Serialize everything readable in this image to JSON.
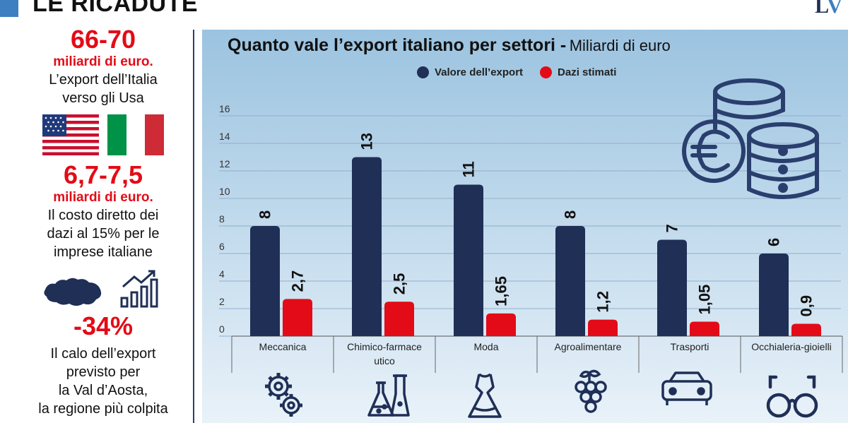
{
  "header": {
    "title": "LE RICADUTE",
    "logo": "LV"
  },
  "sidebar": {
    "stat1": {
      "value": "66-70",
      "unit": "miliardi di euro.",
      "lines": [
        "L’export dell’Italia",
        "verso gli Usa"
      ]
    },
    "stat2": {
      "value": "6,7-7,5",
      "unit": "miliardi di euro.",
      "lines": [
        "Il costo diretto dei",
        "dazi al 15% per le",
        "imprese italiane"
      ]
    },
    "stat3": {
      "value": "-34%",
      "lines": [
        "Il calo dell’export",
        "previsto per",
        "la Val d’Aosta,",
        "la regione più colpita"
      ]
    }
  },
  "chart_data": {
    "type": "bar",
    "title": "Quanto vale l’export italiano per settori -",
    "subtitle": "Miliardi di euro",
    "categories": [
      "Meccanica",
      "Chimico-farmace utico",
      "Moda",
      "Agroalimentare",
      "Trasporti",
      "Occhialeria-gioielli"
    ],
    "category_lines": [
      [
        "Meccanica"
      ],
      [
        "Chimico-farmace",
        "utico"
      ],
      [
        "Moda"
      ],
      [
        "Agroalimentare"
      ],
      [
        "Trasporti"
      ],
      [
        "Occhialeria-gioielli"
      ]
    ],
    "series": [
      {
        "name": "Valore dell’export",
        "color": "#1f2f56",
        "values": [
          8,
          13,
          11,
          8,
          7,
          6
        ],
        "labels": [
          "8",
          "13",
          "11",
          "8",
          "7",
          "6"
        ]
      },
      {
        "name": "Dazi stimati",
        "color": "#e30b17",
        "values": [
          2.7,
          2.5,
          1.65,
          1.2,
          1.05,
          0.9
        ],
        "labels": [
          "2,7",
          "2,5",
          "1,65",
          "1,2",
          "1,05",
          "0,9"
        ]
      }
    ],
    "yticks": [
      "0",
      "2",
      "4",
      "6",
      "8",
      "10",
      "12",
      "14",
      "16"
    ],
    "ylim": [
      0,
      16
    ],
    "grid": true,
    "legend_position": "top-center",
    "category_icons": [
      "gears-icon",
      "lab-flasks-icon",
      "dress-icon",
      "grapes-icon",
      "car-icon",
      "glasses-icon"
    ]
  }
}
